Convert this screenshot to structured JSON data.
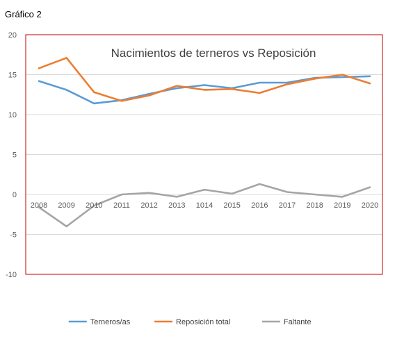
{
  "caption": "Gráfico 2",
  "chart_data": {
    "type": "line",
    "title": "Nacimientos de terneros vs Reposición",
    "xlabel": "",
    "ylabel": "",
    "ylim": [
      -10,
      20
    ],
    "y_ticks": [
      "20",
      "15",
      "10",
      "5",
      "0",
      "-5",
      "-10"
    ],
    "categories": [
      "2008",
      "2009",
      "2010",
      "2011",
      "2012",
      "2013",
      "1014",
      "2015",
      "2016",
      "2017",
      "2018",
      "2019",
      "2020"
    ],
    "grid": true,
    "legend_position": "bottom",
    "series": [
      {
        "name": "Terneros/as",
        "color": "#5B9BD5",
        "values": [
          14.2,
          13.1,
          11.4,
          11.8,
          12.6,
          13.3,
          13.7,
          13.3,
          14.0,
          14.0,
          14.6,
          14.7,
          14.8
        ]
      },
      {
        "name": "Reposición total",
        "color": "#ED7D31",
        "values": [
          15.8,
          17.1,
          12.8,
          11.7,
          12.4,
          13.6,
          13.1,
          13.2,
          12.7,
          13.8,
          14.5,
          15.0,
          13.9
        ]
      },
      {
        "name": "Faltante",
        "color": "#A5A5A5",
        "values": [
          -1.6,
          -4.0,
          -1.4,
          0.0,
          0.2,
          -0.3,
          0.6,
          0.1,
          1.3,
          0.3,
          0.0,
          -0.3,
          0.9
        ]
      }
    ]
  }
}
